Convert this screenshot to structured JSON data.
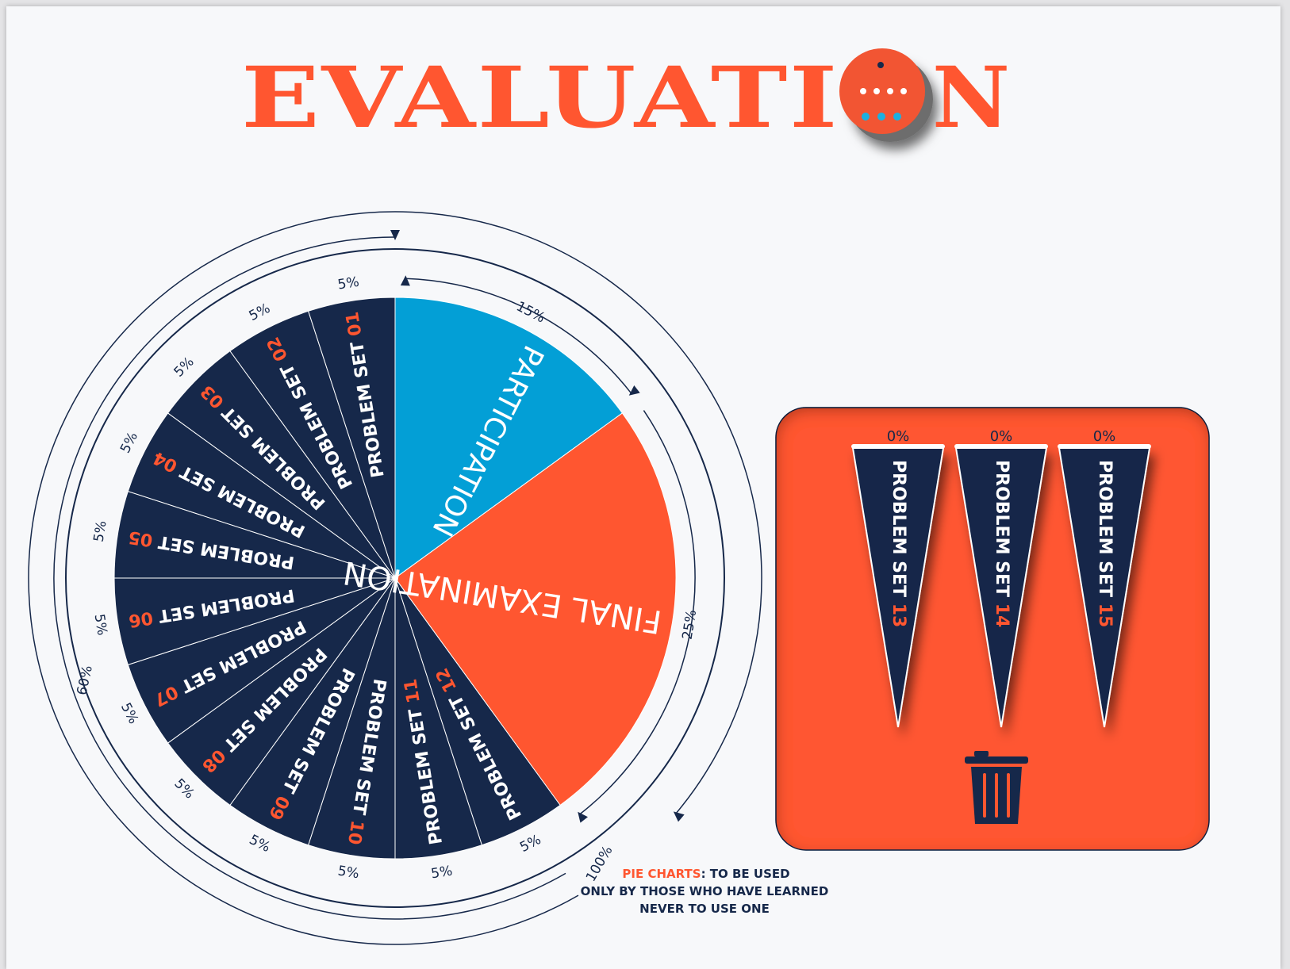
{
  "header": {
    "title_before_o": "EVALUATI",
    "title_after_o": "N"
  },
  "chart_data": {
    "type": "pie",
    "slices": [
      {
        "label": "Participation",
        "value": 15,
        "value_label": "15%",
        "color": "#039fd6"
      },
      {
        "label": "Final Examination",
        "value": 25,
        "value_label": "25%",
        "color": "#ff5630"
      },
      {
        "label_prefix": "Problem Set",
        "label_number": "12",
        "value": 5,
        "value_label": "5%",
        "color": "#16284a"
      },
      {
        "label_prefix": "Problem Set",
        "label_number": "11",
        "value": 5,
        "value_label": "5%",
        "color": "#16284a"
      },
      {
        "label_prefix": "Problem Set",
        "label_number": "10",
        "value": 5,
        "value_label": "5%",
        "color": "#16284a"
      },
      {
        "label_prefix": "Problem Set",
        "label_number": "09",
        "value": 5,
        "value_label": "5%",
        "color": "#16284a"
      },
      {
        "label_prefix": "Problem Set",
        "label_number": "08",
        "value": 5,
        "value_label": "5%",
        "color": "#16284a"
      },
      {
        "label_prefix": "Problem Set",
        "label_number": "07",
        "value": 5,
        "value_label": "5%",
        "color": "#16284a"
      },
      {
        "label_prefix": "Problem Set",
        "label_number": "06",
        "value": 5,
        "value_label": "5%",
        "color": "#16284a"
      },
      {
        "label_prefix": "Problem Set",
        "label_number": "05",
        "value": 5,
        "value_label": "5%",
        "color": "#16284a"
      },
      {
        "label_prefix": "Problem Set",
        "label_number": "04",
        "value": 5,
        "value_label": "5%",
        "color": "#16284a"
      },
      {
        "label_prefix": "Problem Set",
        "label_number": "03",
        "value": 5,
        "value_label": "5%",
        "color": "#16284a"
      },
      {
        "label_prefix": "Problem Set",
        "label_number": "02",
        "value": 5,
        "value_label": "5%",
        "color": "#16284a"
      },
      {
        "label_prefix": "Problem Set",
        "label_number": "01",
        "value": 5,
        "value_label": "5%",
        "color": "#16284a"
      }
    ],
    "group_labels": {
      "problem_sets": "60%",
      "total": "100%"
    },
    "discarded": [
      {
        "label_prefix": "Problem Set",
        "label_number": "13",
        "value": 0,
        "value_label": "0%"
      },
      {
        "label_prefix": "Problem Set",
        "label_number": "14",
        "value": 0,
        "value_label": "0%"
      },
      {
        "label_prefix": "Problem Set",
        "label_number": "15",
        "value": 0,
        "value_label": "0%"
      }
    ]
  },
  "note": {
    "highlight": "PIE CHARTS",
    "line1_rest": ": TO BE USED",
    "line2": "ONLY BY THOSE WHO HAVE LEARNED",
    "line3": "NEVER TO USE ONE"
  },
  "colors": {
    "navy": "#16284a",
    "orange": "#ff5630",
    "blue": "#039fd6",
    "white": "#ffffff"
  },
  "icons": {
    "title_o": "pie-dial-icon",
    "trash": "trash-can-icon"
  }
}
